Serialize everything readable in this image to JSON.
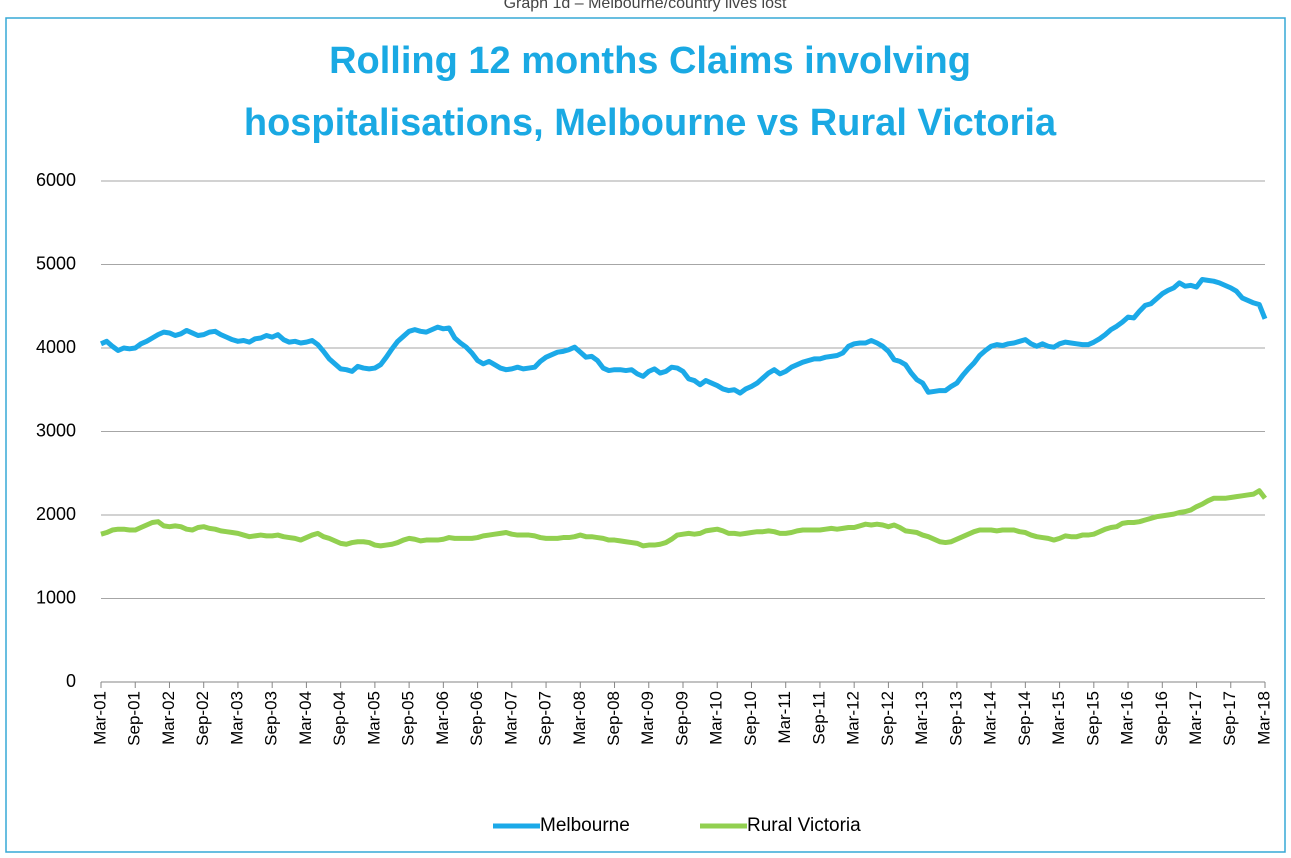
{
  "caption": "Graph 1d – Melbourne/country lives lost",
  "chart_data": {
    "type": "line",
    "title": [
      "Rolling 12 months Claims involving",
      "hospitalisations, Melbourne vs Rural Victoria"
    ],
    "categories": [
      "Mar-01",
      null,
      null,
      null,
      null,
      null,
      "Sep-01",
      null,
      null,
      null,
      null,
      null,
      "Mar-02",
      null,
      null,
      null,
      null,
      null,
      "Sep-02",
      null,
      null,
      null,
      null,
      null,
      "Mar-03",
      null,
      null,
      null,
      null,
      null,
      "Sep-03",
      null,
      null,
      null,
      null,
      null,
      "Mar-04",
      null,
      null,
      null,
      null,
      null,
      "Sep-04",
      null,
      null,
      null,
      null,
      null,
      "Mar-05",
      null,
      null,
      null,
      null,
      null,
      "Sep-05",
      null,
      null,
      null,
      null,
      null,
      "Mar-06",
      null,
      null,
      null,
      null,
      null,
      "Sep-06",
      null,
      null,
      null,
      null,
      null,
      "Mar-07",
      null,
      null,
      null,
      null,
      null,
      "Sep-07",
      null,
      null,
      null,
      null,
      null,
      "Mar-08",
      null,
      null,
      null,
      null,
      null,
      "Sep-08",
      null,
      null,
      null,
      null,
      null,
      "Mar-09",
      null,
      null,
      null,
      null,
      null,
      "Sep-09",
      null,
      null,
      null,
      null,
      null,
      "Mar-10",
      null,
      null,
      null,
      null,
      null,
      "Sep-10",
      null,
      null,
      null,
      null,
      null,
      "Mar-11",
      null,
      null,
      null,
      null,
      null,
      "Sep-11",
      null,
      null,
      null,
      null,
      null,
      "Mar-12",
      null,
      null,
      null,
      null,
      null,
      "Sep-12",
      null,
      null,
      null,
      null,
      null,
      "Mar-13",
      null,
      null,
      null,
      null,
      null,
      "Sep-13",
      null,
      null,
      null,
      null,
      null,
      "Mar-14",
      null,
      null,
      null,
      null,
      null,
      "Sep-14",
      null,
      null,
      null,
      null,
      null,
      "Mar-15",
      null,
      null,
      null,
      null,
      null,
      "Sep-15",
      null,
      null,
      null,
      null,
      null,
      "Mar-16",
      null,
      null,
      null,
      null,
      null,
      "Sep-16",
      null,
      null,
      null,
      null,
      null,
      "Mar-17",
      null,
      null,
      null,
      null,
      null,
      "Sep-17",
      null,
      null,
      null,
      null,
      null,
      "Mar-18"
    ],
    "series": [
      {
        "name": "Melbourne",
        "color": "#1ba9e8",
        "values": [
          4050,
          4080,
          4020,
          3970,
          4000,
          3990,
          4000,
          4050,
          4080,
          4120,
          4160,
          4190,
          4180,
          4150,
          4170,
          4210,
          4180,
          4150,
          4160,
          4190,
          4200,
          4160,
          4130,
          4100,
          4080,
          4090,
          4070,
          4110,
          4120,
          4150,
          4130,
          4160,
          4100,
          4070,
          4080,
          4060,
          4070,
          4090,
          4040,
          3960,
          3870,
          3810,
          3750,
          3740,
          3720,
          3780,
          3760,
          3750,
          3760,
          3800,
          3890,
          3990,
          4080,
          4140,
          4200,
          4220,
          4200,
          4190,
          4220,
          4250,
          4230,
          4240,
          4120,
          4060,
          4010,
          3940,
          3850,
          3810,
          3840,
          3800,
          3760,
          3740,
          3750,
          3770,
          3750,
          3760,
          3770,
          3840,
          3890,
          3920,
          3950,
          3960,
          3980,
          4010,
          3950,
          3890,
          3900,
          3850,
          3760,
          3730,
          3740,
          3740,
          3730,
          3740,
          3690,
          3660,
          3720,
          3750,
          3700,
          3720,
          3770,
          3760,
          3720,
          3630,
          3610,
          3560,
          3610,
          3580,
          3550,
          3510,
          3490,
          3500,
          3460,
          3510,
          3540,
          3580,
          3640,
          3700,
          3740,
          3690,
          3720,
          3770,
          3800,
          3830,
          3850,
          3870,
          3870,
          3890,
          3900,
          3910,
          3940,
          4020,
          4050,
          4060,
          4060,
          4090,
          4060,
          4020,
          3960,
          3860,
          3840,
          3800,
          3700,
          3620,
          3580,
          3470,
          3480,
          3490,
          3490,
          3540,
          3580,
          3670,
          3750,
          3820,
          3910,
          3970,
          4020,
          4040,
          4030,
          4050,
          4060,
          4080,
          4100,
          4050,
          4020,
          4050,
          4020,
          4010,
          4050,
          4070,
          4060,
          4050,
          4040,
          4040,
          4070,
          4110,
          4160,
          4220,
          4260,
          4310,
          4370,
          4360,
          4440,
          4510,
          4530,
          4590,
          4650,
          4690,
          4720,
          4780,
          4740,
          4750,
          4730,
          4820,
          4810,
          4800,
          4780,
          4750,
          4720,
          4680,
          4600,
          4570,
          4540,
          4520,
          4350
        ]
      },
      {
        "name": "Rural Victoria",
        "color": "#92d050",
        "values": [
          1770,
          1790,
          1820,
          1830,
          1830,
          1820,
          1820,
          1850,
          1880,
          1910,
          1920,
          1870,
          1860,
          1870,
          1860,
          1830,
          1820,
          1850,
          1860,
          1840,
          1830,
          1810,
          1800,
          1790,
          1780,
          1760,
          1740,
          1750,
          1760,
          1750,
          1750,
          1760,
          1740,
          1730,
          1720,
          1700,
          1730,
          1760,
          1780,
          1740,
          1720,
          1690,
          1660,
          1650,
          1670,
          1680,
          1680,
          1670,
          1640,
          1630,
          1640,
          1650,
          1670,
          1700,
          1720,
          1710,
          1690,
          1700,
          1700,
          1700,
          1710,
          1730,
          1720,
          1720,
          1720,
          1720,
          1730,
          1750,
          1760,
          1770,
          1780,
          1790,
          1770,
          1760,
          1760,
          1760,
          1750,
          1730,
          1720,
          1720,
          1720,
          1730,
          1730,
          1740,
          1760,
          1740,
          1740,
          1730,
          1720,
          1700,
          1700,
          1690,
          1680,
          1670,
          1660,
          1630,
          1640,
          1640,
          1650,
          1670,
          1710,
          1760,
          1770,
          1780,
          1770,
          1780,
          1810,
          1820,
          1830,
          1810,
          1780,
          1780,
          1770,
          1780,
          1790,
          1800,
          1800,
          1810,
          1800,
          1780,
          1780,
          1790,
          1810,
          1820,
          1820,
          1820,
          1820,
          1830,
          1840,
          1830,
          1840,
          1850,
          1850,
          1870,
          1890,
          1880,
          1890,
          1880,
          1860,
          1880,
          1850,
          1810,
          1800,
          1790,
          1760,
          1740,
          1710,
          1680,
          1670,
          1680,
          1710,
          1740,
          1770,
          1800,
          1820,
          1820,
          1820,
          1810,
          1820,
          1820,
          1820,
          1800,
          1790,
          1760,
          1740,
          1730,
          1720,
          1700,
          1720,
          1750,
          1740,
          1740,
          1760,
          1760,
          1770,
          1800,
          1830,
          1850,
          1860,
          1900,
          1910,
          1910,
          1920,
          1940,
          1960,
          1980,
          1990,
          2000,
          2010,
          2030,
          2040,
          2060,
          2100,
          2130,
          2170,
          2200,
          2200,
          2200,
          2210,
          2220,
          2230,
          2240,
          2250,
          2290,
          2200
        ]
      }
    ],
    "ylim": [
      0,
      6000
    ],
    "yticks": [
      0,
      1000,
      2000,
      3000,
      4000,
      5000,
      6000
    ],
    "grid": true,
    "legend": "bottom"
  }
}
